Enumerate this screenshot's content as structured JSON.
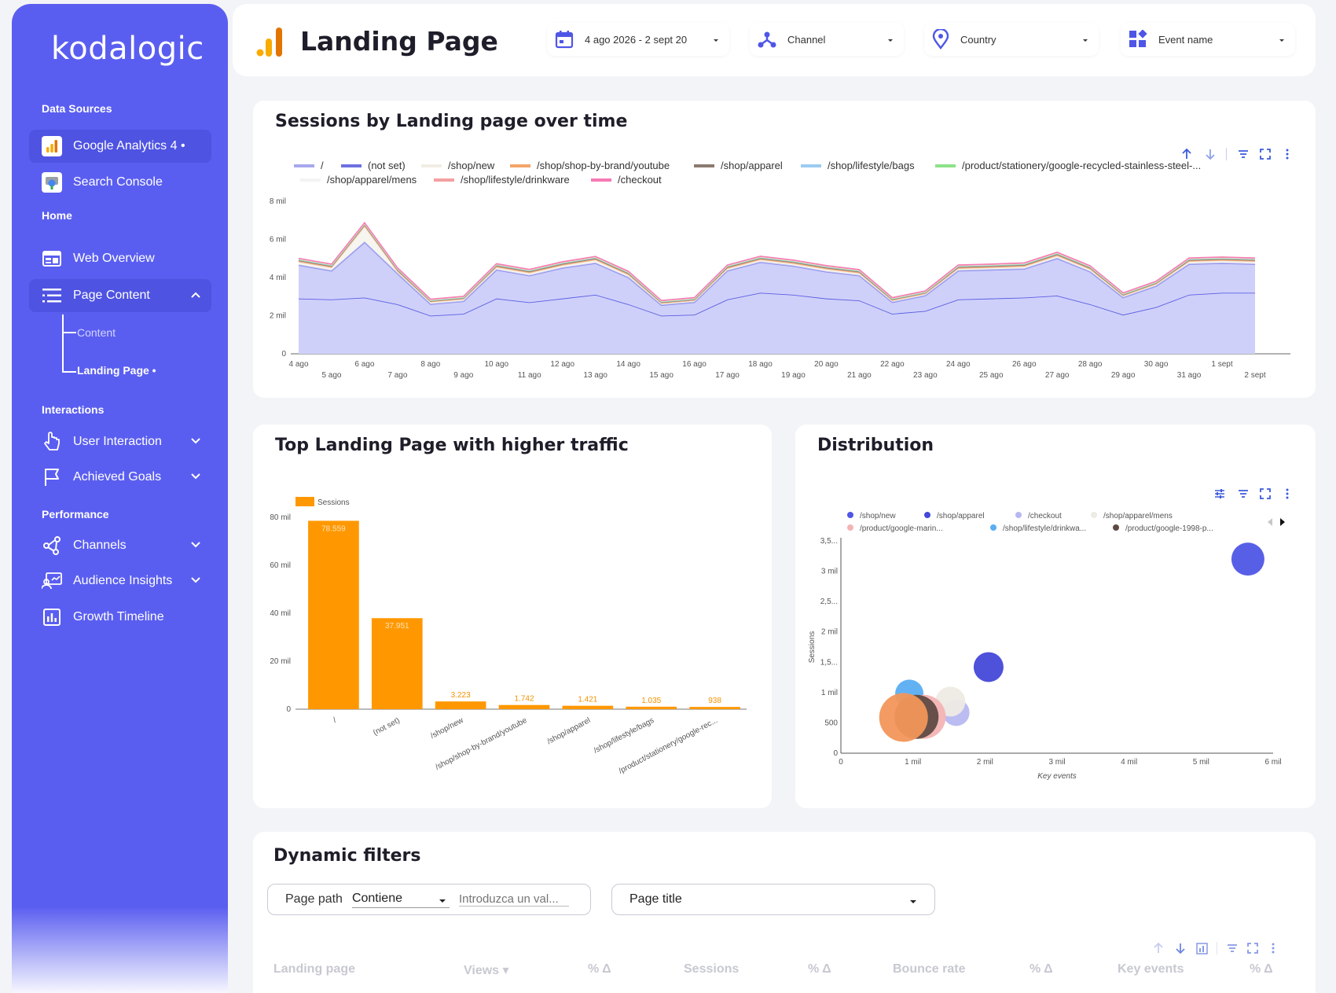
{
  "brand": {
    "logo": "kodalogic",
    "accent": "#5a5ef0",
    "bar_color": "#ff9800"
  },
  "sidebar": {
    "data_sources_title": "Data Sources",
    "sources": [
      {
        "label": "Google Analytics 4 •",
        "icon": "analytics-icon"
      },
      {
        "label": "Search Console",
        "icon": "search-console-icon"
      }
    ],
    "home_title": "Home",
    "home_items": [
      {
        "label": "Web Overview",
        "icon": "browser-icon"
      },
      {
        "label": "Page Content",
        "icon": "list-icon"
      }
    ],
    "page_content_sub": [
      {
        "label": "Content"
      },
      {
        "label": "Landing Page •"
      }
    ],
    "interactions_title": "Interactions",
    "interaction_items": [
      {
        "label": "User Interaction",
        "icon": "pointer-icon"
      },
      {
        "label": "Achieved Goals",
        "icon": "flag-icon"
      }
    ],
    "performance_title": "Performance",
    "performance_items": [
      {
        "label": "Channels",
        "icon": "share-icon"
      },
      {
        "label": "Audience Insights",
        "icon": "audience-icon"
      },
      {
        "label": "Growth Timeline",
        "icon": "bar-chart-icon"
      }
    ]
  },
  "header": {
    "title": "Landing Page",
    "filters": [
      {
        "label": "4 ago 2026 - 2 sept 20",
        "icon": "calendar-icon"
      },
      {
        "label": "Channel",
        "icon": "channel-icon"
      },
      {
        "label": "Country",
        "icon": "location-icon"
      },
      {
        "label": "Event name",
        "icon": "widgets-icon"
      }
    ]
  },
  "sessions_chart": {
    "title": "Sessions by Landing page over time",
    "legend": [
      {
        "name": "/",
        "color": "#a8a8ee"
      },
      {
        "name": "(not set)",
        "color": "#6d70e0"
      },
      {
        "name": "/shop/new",
        "color": "#f1ede4"
      },
      {
        "name": "/shop/shop-by-brand/youtube",
        "color": "#f4a46a"
      },
      {
        "name": "/shop/apparel",
        "color": "#8b7a6e"
      },
      {
        "name": "/shop/lifestyle/bags",
        "color": "#9ccbf2"
      },
      {
        "name": "/product/stationery/google-recycled-stainless-steel-...",
        "color": "#8de28a"
      },
      {
        "name": "/shop/apparel/mens",
        "color": "#f3f3f3"
      },
      {
        "name": "/shop/lifestyle/drinkware",
        "color": "#f3a0a0"
      },
      {
        "name": "/checkout",
        "color": "#f67ab5"
      }
    ],
    "y_ticks": [
      "0",
      "2 mil",
      "4 mil",
      "6 mil",
      "8 mil"
    ],
    "x_ticks": [
      "4 ago",
      "5 ago",
      "6 ago",
      "7 ago",
      "8 ago",
      "9 ago",
      "10 ago",
      "11 ago",
      "12 ago",
      "13 ago",
      "14 ago",
      "15 ago",
      "16 ago",
      "17 ago",
      "18 ago",
      "19 ago",
      "20 ago",
      "21 ago",
      "22 ago",
      "23 ago",
      "24 ago",
      "25 ago",
      "26 ago",
      "27 ago",
      "28 ago",
      "29 ago",
      "30 ago",
      "31 ago",
      "1 sept",
      "2 sept"
    ]
  },
  "bar_chart": {
    "title": "Top Landing Page with higher traffic",
    "legend": "Sessions",
    "y_ticks": [
      "0",
      "20 mil",
      "40 mil",
      "60 mil",
      "80 mil"
    ]
  },
  "scatter_chart": {
    "title": "Distribution",
    "legend": [
      {
        "name": "/shop/new",
        "color": "#4f56e6"
      },
      {
        "name": "/shop/apparel",
        "color": "#4448d8"
      },
      {
        "name": "/checkout",
        "color": "#b7b8f0"
      },
      {
        "name": "/shop/apparel/mens",
        "color": "#eeeae4"
      },
      {
        "name": "/product/google-marin...",
        "color": "#f3b4b4"
      },
      {
        "name": "/shop/lifestyle/drinkwa...",
        "color": "#5aaef2"
      },
      {
        "name": "/product/google-1998-p...",
        "color": "#5e4a42"
      }
    ],
    "y_ticks": [
      "0",
      "500",
      "1 mil",
      "1,5...",
      "2 mil",
      "2,5...",
      "3 mil",
      "3,5..."
    ],
    "x_ticks": [
      "0",
      "1 mil",
      "2 mil",
      "3 mil",
      "4 mil",
      "5 mil",
      "6 mil"
    ],
    "x_label": "Key events",
    "y_label": "Sessions"
  },
  "chart_data": [
    {
      "type": "area",
      "title": "Sessions by Landing page over time",
      "x": [
        "4 ago",
        "5 ago",
        "6 ago",
        "7 ago",
        "8 ago",
        "9 ago",
        "10 ago",
        "11 ago",
        "12 ago",
        "13 ago",
        "14 ago",
        "15 ago",
        "16 ago",
        "17 ago",
        "18 ago",
        "19 ago",
        "20 ago",
        "21 ago",
        "22 ago",
        "23 ago",
        "24 ago",
        "25 ago",
        "26 ago",
        "27 ago",
        "28 ago",
        "29 ago",
        "30 ago",
        "31 ago",
        "1 sept",
        "2 sept"
      ],
      "ylim": [
        0,
        8000
      ],
      "series": [
        {
          "name": "/",
          "values": [
            2900,
            2850,
            2950,
            2600,
            2000,
            2100,
            2900,
            2700,
            2900,
            3100,
            2600,
            2000,
            2050,
            2850,
            3200,
            3100,
            2900,
            2800,
            2100,
            2250,
            2850,
            2900,
            2950,
            3050,
            2600,
            2050,
            2450,
            3100,
            3200,
            3200
          ]
        },
        {
          "name": "(not set)",
          "values": [
            1750,
            1500,
            2900,
            1600,
            600,
            650,
            1500,
            1400,
            1600,
            1650,
            1400,
            550,
            650,
            1500,
            1600,
            1500,
            1400,
            1300,
            600,
            800,
            1500,
            1500,
            1500,
            1950,
            1700,
            900,
            1100,
            1600,
            1550,
            1500
          ]
        },
        {
          "name": "/shop/new",
          "values": [
            150,
            150,
            800,
            100,
            100,
            100,
            120,
            120,
            120,
            150,
            120,
            80,
            80,
            100,
            110,
            110,
            120,
            110,
            80,
            80,
            100,
            100,
            110,
            120,
            110,
            80,
            90,
            120,
            120,
            120
          ]
        },
        {
          "name": "/shop/shop-by-brand/youtube",
          "values": [
            60,
            60,
            80,
            60,
            40,
            40,
            60,
            60,
            60,
            60,
            60,
            40,
            40,
            60,
            60,
            60,
            60,
            60,
            40,
            40,
            60,
            60,
            60,
            60,
            60,
            40,
            40,
            60,
            60,
            60
          ]
        },
        {
          "name": "/shop/apparel",
          "values": [
            40,
            40,
            40,
            40,
            30,
            30,
            40,
            40,
            40,
            40,
            40,
            30,
            30,
            40,
            40,
            40,
            40,
            40,
            30,
            30,
            40,
            40,
            40,
            40,
            40,
            30,
            30,
            40,
            40,
            40
          ]
        },
        {
          "name": "/shop/lifestyle/bags",
          "values": [
            30,
            30,
            30,
            30,
            20,
            20,
            30,
            30,
            30,
            30,
            30,
            20,
            20,
            30,
            30,
            30,
            30,
            30,
            20,
            20,
            30,
            30,
            30,
            30,
            30,
            20,
            20,
            30,
            30,
            30
          ]
        },
        {
          "name": "/product/stationery/google-recycled-stainless-steel-...",
          "values": [
            20,
            20,
            20,
            20,
            20,
            20,
            20,
            20,
            20,
            20,
            20,
            20,
            20,
            20,
            20,
            20,
            20,
            20,
            20,
            20,
            20,
            20,
            20,
            20,
            20,
            20,
            20,
            20,
            20,
            20
          ]
        },
        {
          "name": "/shop/apparel/mens",
          "values": [
            20,
            20,
            20,
            20,
            20,
            20,
            20,
            20,
            20,
            20,
            20,
            20,
            20,
            20,
            20,
            20,
            20,
            20,
            20,
            20,
            20,
            20,
            20,
            20,
            20,
            20,
            20,
            20,
            20,
            20
          ]
        },
        {
          "name": "/shop/lifestyle/drinkware",
          "values": [
            20,
            20,
            20,
            20,
            20,
            20,
            20,
            20,
            20,
            20,
            20,
            20,
            20,
            20,
            20,
            20,
            20,
            20,
            20,
            20,
            20,
            20,
            20,
            20,
            20,
            20,
            20,
            20,
            20,
            20
          ]
        },
        {
          "name": "/checkout",
          "values": [
            20,
            20,
            20,
            20,
            20,
            20,
            20,
            20,
            20,
            20,
            20,
            20,
            20,
            20,
            20,
            20,
            20,
            20,
            20,
            20,
            20,
            20,
            20,
            20,
            20,
            20,
            20,
            20,
            20,
            20
          ]
        }
      ]
    },
    {
      "type": "bar",
      "title": "Top Landing Page with higher traffic",
      "categories": [
        "/",
        "(not set)",
        "/shop/new",
        "/shop/shop-by-brand/youtube",
        "/shop/apparel",
        "/shop/lifestyle/bags",
        "/product/stationery/google-rec..."
      ],
      "series": [
        {
          "name": "Sessions",
          "values": [
            78559,
            37951,
            3223,
            1742,
            1421,
            1035,
            938
          ]
        }
      ],
      "value_labels": [
        "78.559",
        "37.951",
        "3.223",
        "1.742",
        "1.421",
        "1.035",
        "938"
      ],
      "ylim": [
        0,
        80000
      ]
    },
    {
      "type": "scatter",
      "title": "Distribution",
      "xlabel": "Key events",
      "ylabel": "Sessions",
      "xlim": [
        0,
        6000
      ],
      "ylim": [
        0,
        3500
      ],
      "points": [
        {
          "name": "/shop/new",
          "x": 5650,
          "y": 3200,
          "color": "#4f56e6"
        },
        {
          "name": "/shop/apparel",
          "x": 2050,
          "y": 1420,
          "color": "#4448d8"
        },
        {
          "name": "/checkout",
          "x": 1600,
          "y": 670,
          "color": "#b7b8f0"
        },
        {
          "name": "/shop/apparel/mens",
          "x": 1520,
          "y": 850,
          "color": "#eeeae4"
        },
        {
          "name": "/product/google-marin...",
          "x": 1150,
          "y": 600,
          "color": "#f3b4b4"
        },
        {
          "name": "/shop/lifestyle/drinkwa...",
          "x": 950,
          "y": 980,
          "color": "#5aaef2"
        },
        {
          "name": "/product/google-1998-p...",
          "x": 1050,
          "y": 600,
          "color": "#5e4a42"
        },
        {
          "name": "",
          "x": 870,
          "y": 590,
          "color": "#f2965a"
        }
      ]
    }
  ],
  "dynamic_filters": {
    "title": "Dynamic filters",
    "page_path_label": "Page path",
    "operator": "Contiene",
    "value_placeholder": "Introduzca un val...",
    "page_title_label": "Page title",
    "columns": [
      "Landing page",
      "Views ▾",
      "% Δ",
      "Sessions",
      "% Δ",
      "Bounce rate",
      "% Δ",
      "Key events",
      "% Δ"
    ]
  }
}
